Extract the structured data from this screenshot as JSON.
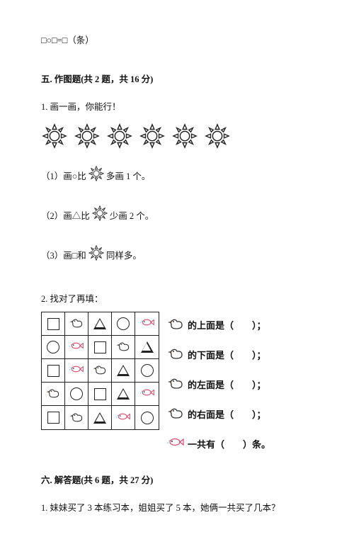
{
  "top_eq": "□○□=□（条）",
  "section5": {
    "title": "五. 作图题(共 2 题，共 16 分)"
  },
  "q1": {
    "stem": "1. 画一画，你能行！",
    "sun_count": 6,
    "sub1_a": "（1）画○比",
    "sub1_b": "多画 1 个。",
    "sub2_a": "（2）画△比",
    "sub2_b": "少画 2 个。",
    "sub3_a": "（3）画□和",
    "sub3_b": "同样多。"
  },
  "q2": {
    "stem": "2. 找对了再填：",
    "grid": [
      [
        "sq",
        "duck",
        "tri",
        "cir",
        "fish"
      ],
      [
        "cir",
        "fish",
        "sq",
        "duck",
        "tri"
      ],
      [
        "sq",
        "fish",
        "duck",
        "tri",
        "cir"
      ],
      [
        "duck",
        "cir",
        "sq",
        "tri",
        "fish"
      ],
      [
        "sq",
        "duck",
        "tri",
        "fish",
        "cir"
      ]
    ],
    "side": [
      {
        "icon": "duck",
        "text": "的上面是（　　）；"
      },
      {
        "icon": "duck",
        "text": "的下面是（　　）；"
      },
      {
        "icon": "duck",
        "text": "的左面是（　　）；"
      },
      {
        "icon": "duck",
        "text": "的右面是（　　）；"
      },
      {
        "icon": "fish",
        "text": "一共有（　　）条。"
      }
    ]
  },
  "section6": {
    "title": "六. 解答题(共 6 题，共 27 分)"
  },
  "q6_1": "1. 妹妹买了 3 本练习本，姐姐买了 5 本，她俩一共买了几本？"
}
